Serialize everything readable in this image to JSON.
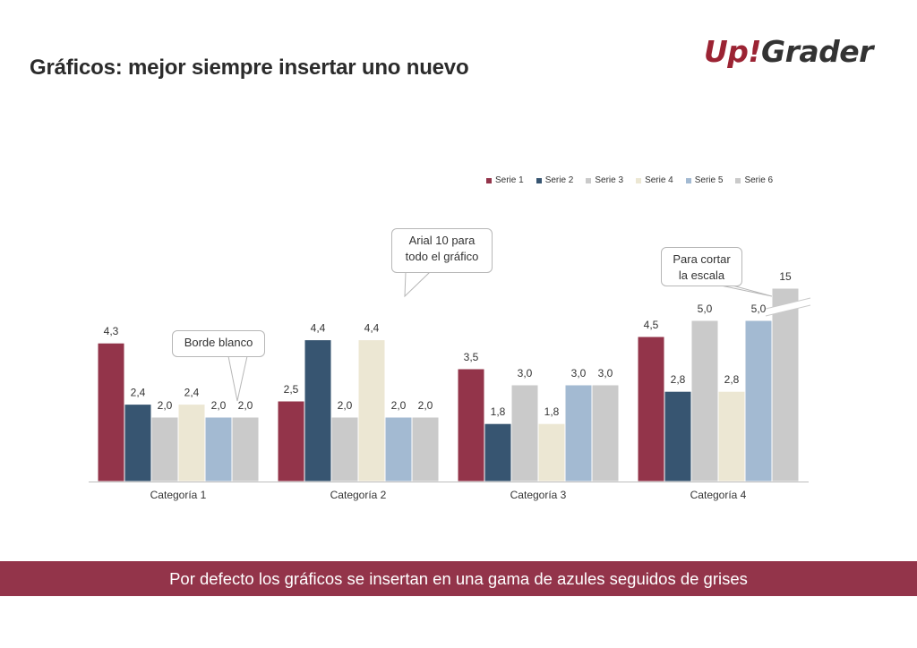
{
  "header": {
    "title": "Gráficos: mejor siempre insertar uno nuevo",
    "logo": "Up!Grader"
  },
  "callouts": {
    "border": "Borde blanco",
    "font_line1": "Arial 10 para",
    "font_line2": "todo el gráfico",
    "scale_line1": "Para cortar",
    "scale_line2": "la escala"
  },
  "footer": {
    "banner": "Por defecto los gráficos se insertan en una gama de azules seguidos de grises"
  },
  "chart_data": {
    "type": "bar",
    "categories": [
      "Categoría 1",
      "Categoría 2",
      "Categoría 3",
      "Categoría 4"
    ],
    "series": [
      {
        "name": "Serie 1",
        "color": "#93344a",
        "values": [
          4.3,
          2.5,
          3.5,
          4.5
        ],
        "labels": [
          "4,3",
          "2,5",
          "3,5",
          "4,5"
        ]
      },
      {
        "name": "Serie 2",
        "color": "#375571",
        "values": [
          2.4,
          4.4,
          1.8,
          2.8
        ],
        "labels": [
          "2,4",
          "4,4",
          "1,8",
          "2,8"
        ]
      },
      {
        "name": "Serie 3",
        "color": "#cacaca",
        "values": [
          2.0,
          2.0,
          3.0,
          5.0
        ],
        "labels": [
          "2,0",
          "2,0",
          "3,0",
          "5,0"
        ]
      },
      {
        "name": "Serie 4",
        "color": "#ece7d3",
        "values": [
          2.4,
          4.4,
          1.8,
          2.8
        ],
        "labels": [
          "2,4",
          "4,4",
          "1,8",
          "2,8"
        ]
      },
      {
        "name": "Serie 5",
        "color": "#a3bad2",
        "values": [
          2.0,
          2.0,
          3.0,
          5.0
        ],
        "labels": [
          "2,0",
          "2,0",
          "3,0",
          "5,0"
        ]
      },
      {
        "name": "Serie 6",
        "color": "#cacaca",
        "values": [
          2.0,
          2.0,
          3.0,
          15
        ],
        "labels": [
          "2,0",
          "2,0",
          "3,0",
          "15"
        ]
      }
    ],
    "axis_break": {
      "series": "Serie 6",
      "category": "Categoría 4",
      "shown_as": 6.0
    },
    "ylim": [
      0,
      6
    ],
    "y_axis_visible": false,
    "grid": false,
    "legend_position": "top-right",
    "bar_border": "white"
  }
}
